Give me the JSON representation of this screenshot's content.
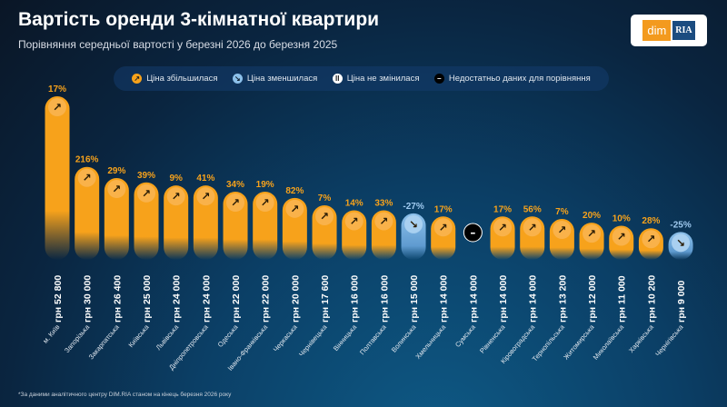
{
  "header": {
    "title": "Вартість оренди 3-кімнатної квартири",
    "subtitle": "Порівняння середньої вартості у березні 2026 до березня 2025"
  },
  "logo": {
    "left": "dim",
    "right": "RIA"
  },
  "legend": [
    {
      "key": "up",
      "label": "Ціна збільшилася",
      "icon": "arrow-up-right-icon",
      "color": "#f7a21b"
    },
    {
      "key": "down",
      "label": "Ціна зменшилася",
      "icon": "arrow-down-right-icon",
      "color": "#7fb3e0"
    },
    {
      "key": "same",
      "label": "Ціна не змінилася",
      "icon": "pause-icon",
      "color": "#ffffff"
    },
    {
      "key": "na",
      "label": "Недостатньо даних для порівняння",
      "icon": "minus-icon",
      "color": "#000000"
    }
  ],
  "footnote": "*За даними аналітичного центру DIM.RIA станом на кінець березня 2026 року",
  "chart_data": {
    "type": "bar",
    "title": "Вартість оренди 3-кімнатної квартири",
    "unit": "грн",
    "categories": [
      "м. Київ",
      "Запорізька",
      "Закарпатська",
      "Київська",
      "Львівська",
      "Дніпропетровська",
      "Одеська",
      "Івано-Франківська",
      "Черкаська",
      "Чернівецька",
      "Вінницька",
      "Полтавська",
      "Волинська",
      "Хмельницька",
      "Сумська",
      "Рівненська",
      "Кіровоградська",
      "Тернопільська",
      "Житомирська",
      "Миколаївська",
      "Харківська",
      "Чернігівська"
    ],
    "values": [
      52800,
      30000,
      26400,
      25000,
      24000,
      24000,
      22000,
      22000,
      20000,
      17600,
      16000,
      16000,
      15000,
      14000,
      14000,
      14000,
      14000,
      13200,
      12000,
      11000,
      10200,
      9000
    ],
    "value_labels": [
      "52 800",
      "30 000",
      "26 400",
      "25 000",
      "24 000",
      "24 000",
      "22 000",
      "22 000",
      "20 000",
      "17 600",
      "16 000",
      "16 000",
      "15 000",
      "14 000",
      "14 000",
      "14 000",
      "14 000",
      "13 200",
      "12 000",
      "11 000",
      "10 200",
      "9 000"
    ],
    "change_labels": [
      "17%",
      "216%",
      "29%",
      "39%",
      "9%",
      "41%",
      "34%",
      "19%",
      "82%",
      "7%",
      "14%",
      "33%",
      "-27%",
      "17%",
      "",
      "17%",
      "56%",
      "7%",
      "20%",
      "10%",
      "28%",
      "-25%"
    ],
    "status": [
      "up",
      "up",
      "up",
      "up",
      "up",
      "up",
      "up",
      "up",
      "up",
      "up",
      "up",
      "up",
      "down",
      "up",
      "na",
      "up",
      "up",
      "up",
      "up",
      "up",
      "up",
      "down"
    ],
    "colors": {
      "up": "#f7a21b",
      "down": "#8cc0ea",
      "na": "#000000"
    }
  }
}
